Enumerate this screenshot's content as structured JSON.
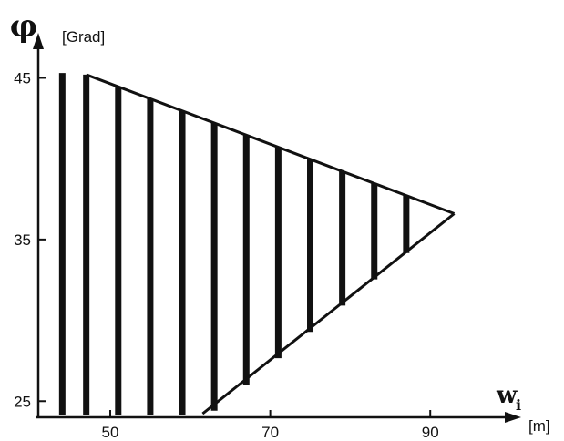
{
  "chart_data": {
    "type": "area",
    "title": "",
    "y_symbol": "φ",
    "y_unit": "[Grad]",
    "x_symbol": "w",
    "x_subscript": "i",
    "x_unit": "[m]",
    "xlim": [
      41,
      100
    ],
    "ylim": [
      24,
      47
    ],
    "x_ticks": [
      50,
      70,
      90
    ],
    "y_ticks": [
      25,
      35,
      45
    ],
    "grid": false,
    "fill_style": "vertical-hatch",
    "region": {
      "left_edge_x": 44,
      "upper_boundary": [
        [
          44,
          45.3
        ],
        [
          47,
          45.2
        ],
        [
          93,
          36.6
        ]
      ],
      "lower_boundary": [
        [
          44,
          24
        ],
        [
          62,
          24
        ],
        [
          93,
          36.6
        ]
      ]
    },
    "hatch_x": [
      44,
      47,
      51,
      55,
      59,
      63,
      67,
      71,
      75,
      79,
      83,
      87
    ]
  },
  "colors": {
    "ink": "#111111",
    "background": "#ffffff"
  }
}
